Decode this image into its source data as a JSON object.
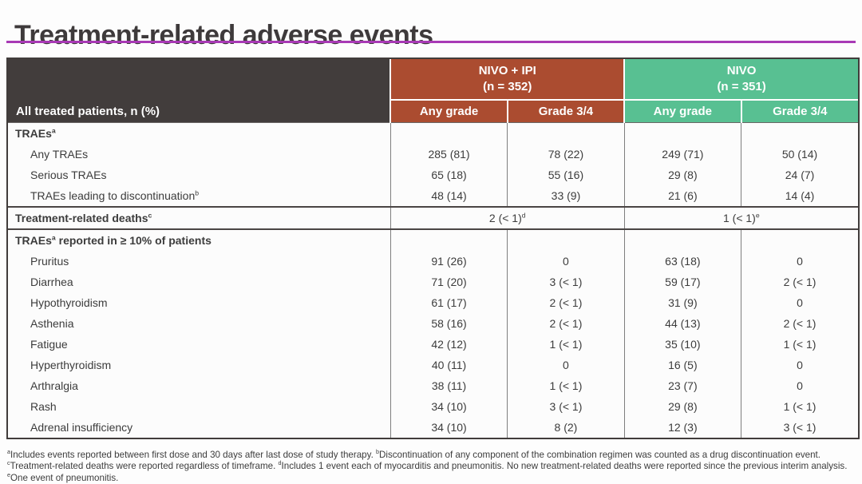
{
  "title": "Treatment-related adverse events",
  "colors": {
    "accent_rule": "#a83ab5",
    "header_dark": "#423d3c",
    "group_nivo_ipi": "#ab4c30",
    "group_nivo": "#58c092"
  },
  "table": {
    "corner_label": "All treated patients, n (%)",
    "groups": [
      {
        "label": "NIVO + IPI",
        "n_label": "(n = 352)",
        "color": "#ab4c30"
      },
      {
        "label": "NIVO",
        "n_label": "(n = 351)",
        "color": "#58c092"
      }
    ],
    "subheaders": [
      "Any grade",
      "Grade 3/4",
      "Any grade",
      "Grade 3/4"
    ],
    "sections": [
      {
        "rows": [
          {
            "label": [
              {
                "t": "TRAEs"
              },
              {
                "s": "a"
              }
            ],
            "style": "section",
            "values": [
              "",
              "",
              "",
              ""
            ]
          },
          {
            "label": [
              {
                "t": "Any TRAEs"
              }
            ],
            "style": "item",
            "values": [
              "285 (81)",
              "78 (22)",
              "249 (71)",
              "50 (14)"
            ]
          },
          {
            "label": [
              {
                "t": "Serious TRAEs"
              }
            ],
            "style": "item",
            "values": [
              "65 (18)",
              "55 (16)",
              "29 (8)",
              "24 (7)"
            ]
          },
          {
            "label": [
              {
                "t": "TRAEs leading to discontinuation"
              },
              {
                "s": "b"
              }
            ],
            "style": "item",
            "values": [
              "48 (14)",
              "33 (9)",
              "21 (6)",
              "14 (4)"
            ]
          }
        ]
      },
      {
        "rows": [
          {
            "label": [
              {
                "t": "Treatment-related deaths"
              },
              {
                "s": "c"
              }
            ],
            "style": "section",
            "merged": [
              [
                {
                  "t": "2 (< 1)"
                },
                {
                  "s": "d"
                }
              ],
              [
                {
                  "t": "1 (< 1)"
                },
                {
                  "s": "e"
                }
              ]
            ]
          }
        ]
      },
      {
        "rows": [
          {
            "label": [
              {
                "t": "TRAEs"
              },
              {
                "s": "a"
              },
              {
                "t": " reported in ≥ 10% of patients"
              }
            ],
            "style": "section",
            "values": [
              "",
              "",
              "",
              ""
            ]
          },
          {
            "label": [
              {
                "t": "Pruritus"
              }
            ],
            "style": "item",
            "values": [
              "91 (26)",
              "0",
              "63 (18)",
              "0"
            ]
          },
          {
            "label": [
              {
                "t": "Diarrhea"
              }
            ],
            "style": "item",
            "values": [
              "71 (20)",
              "3 (< 1)",
              "59 (17)",
              "2 (< 1)"
            ]
          },
          {
            "label": [
              {
                "t": "Hypothyroidism"
              }
            ],
            "style": "item",
            "values": [
              "61 (17)",
              "2 (< 1)",
              "31 (9)",
              "0"
            ]
          },
          {
            "label": [
              {
                "t": "Asthenia"
              }
            ],
            "style": "item",
            "values": [
              "58 (16)",
              "2 (< 1)",
              "44 (13)",
              "2 (< 1)"
            ]
          },
          {
            "label": [
              {
                "t": "Fatigue"
              }
            ],
            "style": "item",
            "values": [
              "42 (12)",
              "1 (< 1)",
              "35 (10)",
              "1 (< 1)"
            ]
          },
          {
            "label": [
              {
                "t": "Hyperthyroidism"
              }
            ],
            "style": "item",
            "values": [
              "40 (11)",
              "0",
              "16 (5)",
              "0"
            ]
          },
          {
            "label": [
              {
                "t": "Arthralgia"
              }
            ],
            "style": "item",
            "values": [
              "38 (11)",
              "1 (< 1)",
              "23 (7)",
              "0"
            ]
          },
          {
            "label": [
              {
                "t": "Rash"
              }
            ],
            "style": "item",
            "values": [
              "34 (10)",
              "3 (< 1)",
              "29 (8)",
              "1 (< 1)"
            ]
          },
          {
            "label": [
              {
                "t": "Adrenal insufficiency"
              }
            ],
            "style": "item",
            "values": [
              "34 (10)",
              "8 (2)",
              "12 (3)",
              "3 (< 1)"
            ]
          }
        ]
      }
    ]
  },
  "footnote_segments": [
    {
      "s": "a",
      "t": "Includes events reported between first dose and 30 days after last dose of study therapy. "
    },
    {
      "s": "b",
      "t": "Discontinuation of any component of the combination regimen was counted as a drug discontinuation event. "
    },
    {
      "s": "c",
      "t": "Treatment-related deaths were reported regardless of timeframe. "
    },
    {
      "s": "d",
      "t": "Includes 1 event each of myocarditis and pneumonitis. No new treatment-related deaths were reported since the previous interim analysis. "
    },
    {
      "s": "e",
      "t": "One event of pneumonitis."
    }
  ]
}
